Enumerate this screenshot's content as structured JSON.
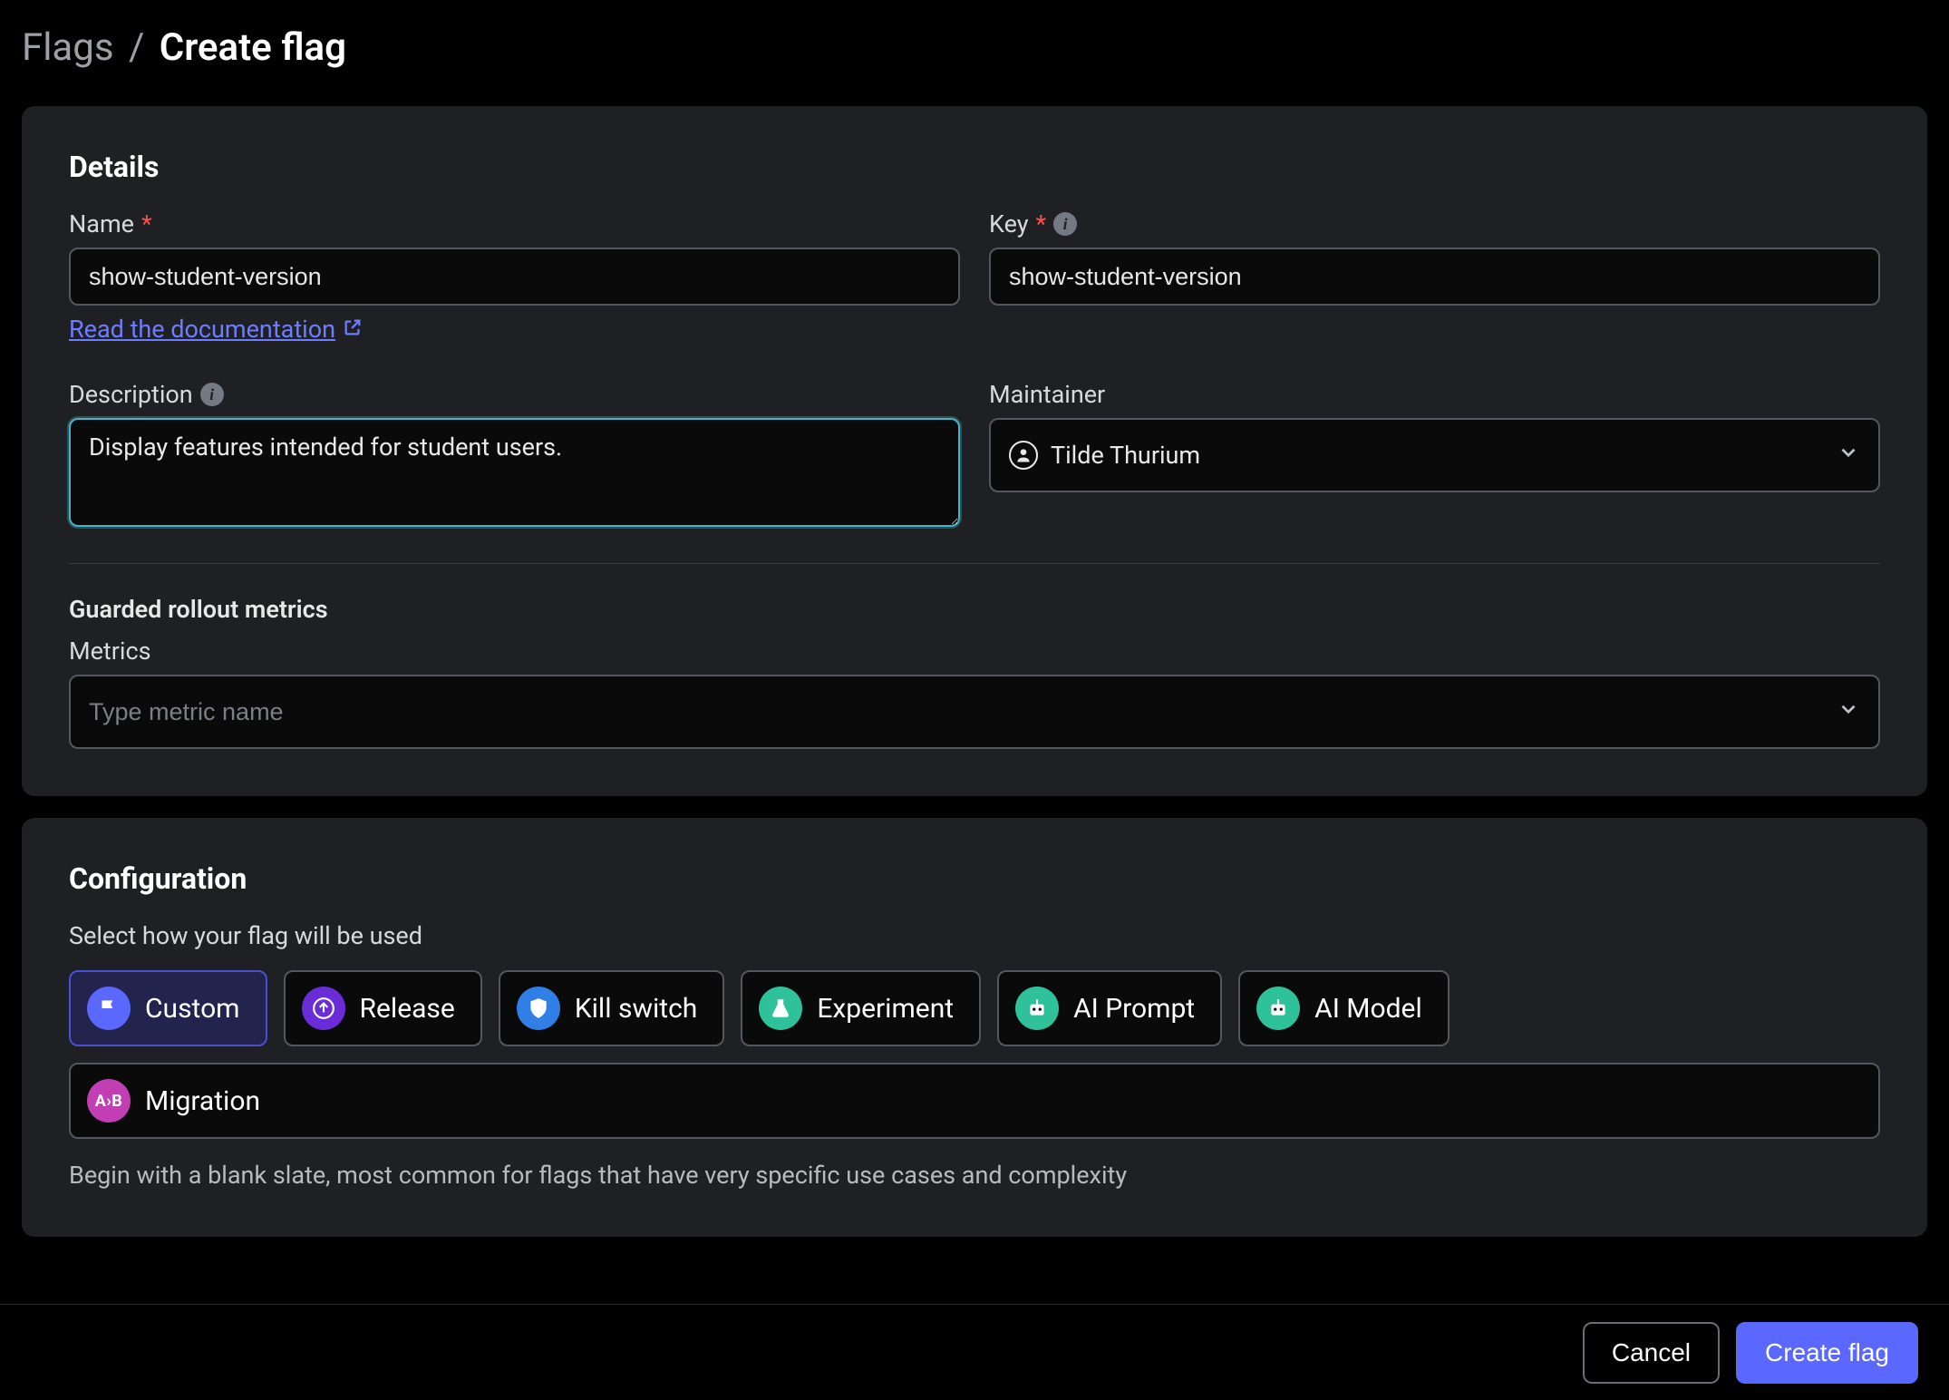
{
  "breadcrumb": {
    "root": "Flags",
    "current": "Create flag"
  },
  "details": {
    "section_title": "Details",
    "name_label": "Name",
    "name_value": "show-student-version",
    "doc_link_text": "Read the documentation",
    "key_label": "Key",
    "key_value": "show-student-version",
    "description_label": "Description",
    "description_value": "Display features intended for student users.",
    "maintainer_label": "Maintainer",
    "maintainer_value": "Tilde Thurium",
    "guarded_title": "Guarded rollout metrics",
    "metrics_label": "Metrics",
    "metrics_placeholder": "Type metric name"
  },
  "config": {
    "section_title": "Configuration",
    "subtitle": "Select how your flag will be used",
    "options": [
      {
        "label": "Custom",
        "selected": true,
        "icon": "flag",
        "color": "#5b68ff"
      },
      {
        "label": "Release",
        "selected": false,
        "icon": "arrow-up",
        "color": "#6a2bd9"
      },
      {
        "label": "Kill switch",
        "selected": false,
        "icon": "shield",
        "color": "#2f7fe6"
      },
      {
        "label": "Experiment",
        "selected": false,
        "icon": "beaker",
        "color": "#2fc19a"
      },
      {
        "label": "AI Prompt",
        "selected": false,
        "icon": "robot",
        "color": "#2fc19a"
      },
      {
        "label": "AI Model",
        "selected": false,
        "icon": "robot",
        "color": "#2fc19a"
      },
      {
        "label": "Migration",
        "selected": false,
        "icon": "ab",
        "color": "#c23fb3",
        "wide": true
      }
    ],
    "description": "Begin with a blank slate, most common for flags that have very specific use cases and complexity"
  },
  "footer": {
    "cancel": "Cancel",
    "submit": "Create flag"
  },
  "colors": {
    "background": "#000000",
    "panel": "#1f2023",
    "input_bg": "#0a0a0a",
    "border": "#53565e",
    "focus_border": "#47b1c6",
    "link": "#6d7dff",
    "primary": "#5b68ff",
    "required": "#ff4d4f"
  }
}
